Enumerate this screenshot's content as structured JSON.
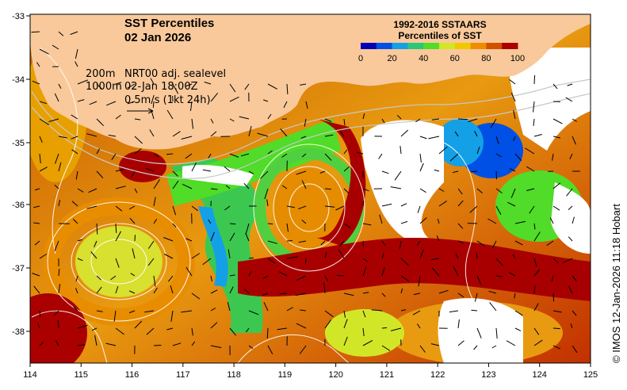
{
  "map": {
    "title": "SST Percentiles",
    "date": "02 Jan 2026",
    "legend": {
      "title_line1": "1992-2016 SSTAARS",
      "title_line2": "Percentiles of SST",
      "ticks": [
        "0",
        "20",
        "40",
        "60",
        "80",
        "100"
      ],
      "colors": [
        "#0000b4",
        "#0050e6",
        "#14a0e6",
        "#28c878",
        "#50dc28",
        "#d2e628",
        "#f0c800",
        "#f08c00",
        "#d25000",
        "#aa0000"
      ]
    },
    "info": {
      "contour_shallow": "200m",
      "contour_deep": "1000m",
      "product": "NRT00 adj. sealevel",
      "time": "02-Jan 18:00Z",
      "scale": "0.5m/s (1kt 24h)"
    },
    "x_ticks": [
      "114",
      "115",
      "116",
      "117",
      "118",
      "119",
      "120",
      "121",
      "122",
      "123",
      "124",
      "125"
    ],
    "y_ticks": [
      "-33",
      "-34",
      "-35",
      "-36",
      "-37",
      "-38"
    ],
    "credit": "© IMOS 12-Jan-2026 11:18 Hobart",
    "colors": {
      "land": "#f9c99b",
      "no_data": "#ffffff",
      "contour": "#c8c8c8",
      "ssh_contour": "#ffffff",
      "vector": "#000000"
    }
  }
}
